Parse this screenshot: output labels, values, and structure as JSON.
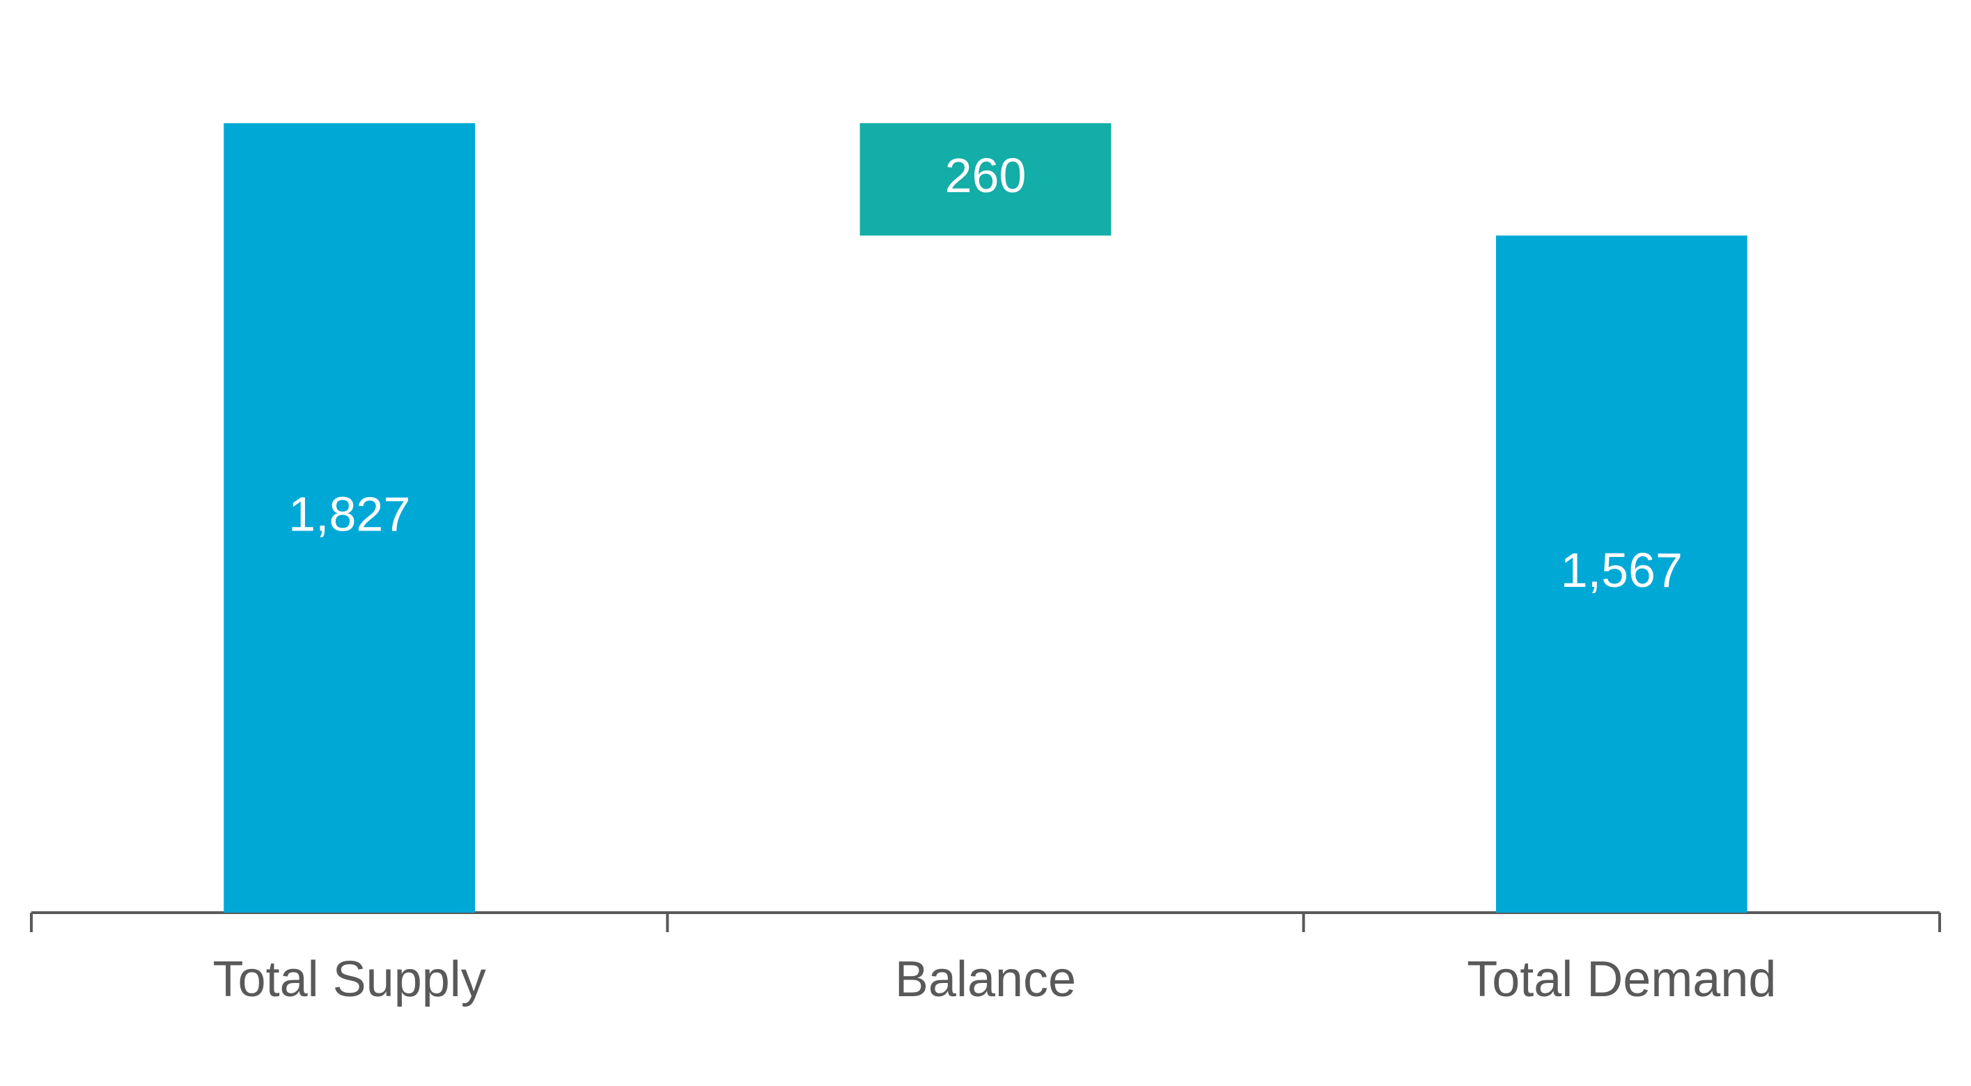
{
  "chart_data": {
    "type": "waterfall",
    "categories": [
      "Total Supply",
      "Balance",
      "Total Demand"
    ],
    "values": [
      1827,
      260,
      1567
    ],
    "value_labels": [
      "1,827",
      "260",
      "1,567"
    ],
    "measures": [
      "total",
      "decrease",
      "total"
    ],
    "colors": [
      "#00a8d6",
      "#12aea7",
      "#00a8d6"
    ]
  }
}
